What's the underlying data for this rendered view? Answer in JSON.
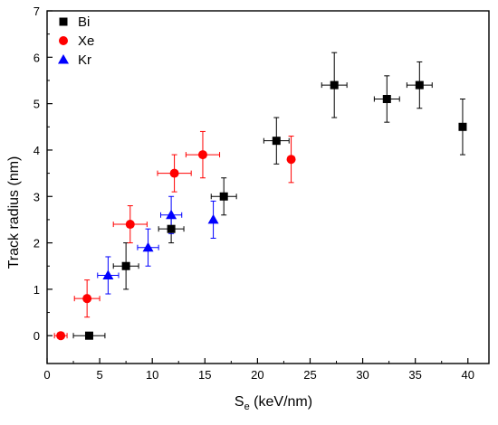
{
  "chart_data": {
    "type": "scatter",
    "title": "",
    "xlabel_main": "S",
    "xlabel_sub": "e",
    "xlabel_rest": " (keV/nm)",
    "ylabel": "Track radius (nm)",
    "xlim": [
      0,
      42
    ],
    "ylim": [
      -0.6,
      7
    ],
    "xticks": [
      0,
      5,
      10,
      15,
      20,
      25,
      30,
      35,
      40
    ],
    "yticks": [
      0,
      1,
      2,
      3,
      4,
      5,
      6,
      7
    ],
    "grid": false,
    "legend_position": "top-left",
    "series": [
      {
        "name": "Bi",
        "marker": "square",
        "color": "#000000",
        "points": [
          {
            "x": 4.0,
            "y": 0.0,
            "xerr": 1.5,
            "yerr": 0.0
          },
          {
            "x": 7.5,
            "y": 1.5,
            "xerr": 1.2,
            "yerr": 0.5
          },
          {
            "x": 11.8,
            "y": 2.3,
            "xerr": 1.2,
            "yerr": 0.3
          },
          {
            "x": 16.8,
            "y": 3.0,
            "xerr": 1.2,
            "yerr": 0.4
          },
          {
            "x": 21.8,
            "y": 4.2,
            "xerr": 1.2,
            "yerr": 0.5
          },
          {
            "x": 27.3,
            "y": 5.4,
            "xerr": 1.2,
            "yerr": 0.7
          },
          {
            "x": 32.3,
            "y": 5.1,
            "xerr": 1.2,
            "yerr": 0.5
          },
          {
            "x": 35.4,
            "y": 5.4,
            "xerr": 1.2,
            "yerr": 0.5
          },
          {
            "x": 39.5,
            "y": 4.5,
            "xerr": 0.0,
            "yerr": 0.6
          }
        ]
      },
      {
        "name": "Xe",
        "marker": "circle",
        "color": "#ff0000",
        "points": [
          {
            "x": 1.3,
            "y": 0.0,
            "xerr": 0.6,
            "yerr": 0.0
          },
          {
            "x": 3.8,
            "y": 0.8,
            "xerr": 1.2,
            "yerr": 0.4
          },
          {
            "x": 7.9,
            "y": 2.4,
            "xerr": 1.6,
            "yerr": 0.4
          },
          {
            "x": 12.1,
            "y": 3.5,
            "xerr": 1.6,
            "yerr": 0.4
          },
          {
            "x": 14.8,
            "y": 3.9,
            "xerr": 1.6,
            "yerr": 0.5
          },
          {
            "x": 23.2,
            "y": 3.8,
            "xerr": 0.0,
            "yerr": 0.5
          }
        ]
      },
      {
        "name": "Kr",
        "marker": "triangle",
        "color": "#0000ff",
        "points": [
          {
            "x": 5.8,
            "y": 1.3,
            "xerr": 1.0,
            "yerr": 0.4
          },
          {
            "x": 9.6,
            "y": 1.9,
            "xerr": 1.0,
            "yerr": 0.4
          },
          {
            "x": 11.8,
            "y": 2.6,
            "xerr": 1.0,
            "yerr": 0.4
          },
          {
            "x": 15.8,
            "y": 2.5,
            "xerr": 0.0,
            "yerr": 0.4
          }
        ]
      }
    ]
  }
}
